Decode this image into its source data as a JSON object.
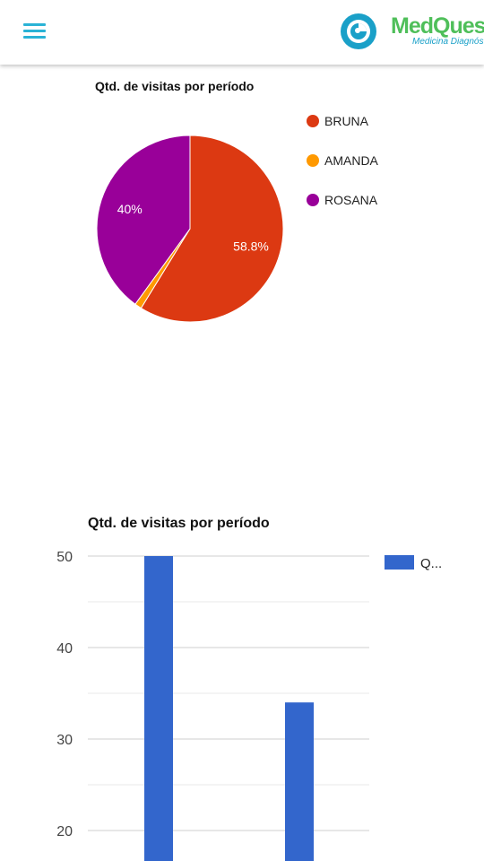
{
  "header": {
    "menu_icon": "hamburger-menu-icon",
    "logo_name": "MedQuest",
    "logo_tagline": "Medicina Diagnóstica",
    "colors": {
      "menu": "#2ab3d6",
      "logo_green": "#4fbf5a",
      "logo_blue": "#1aa0c8"
    }
  },
  "chart_data": [
    {
      "type": "pie",
      "title": "Qtd. de visitas por período",
      "slices": [
        {
          "label": "BRUNA",
          "percent": 58.8,
          "color": "#dc3912",
          "data_label": "58.8%"
        },
        {
          "label": "AMANDA",
          "percent": 1.2,
          "color": "#ff9900",
          "data_label": ""
        },
        {
          "label": "ROSANA",
          "percent": 40.0,
          "color": "#990099",
          "data_label": "40%"
        }
      ],
      "legend_position": "right"
    },
    {
      "type": "bar",
      "title": "Qtd. de visitas por período",
      "categories": [
        "",
        ""
      ],
      "series": [
        {
          "name": "Q...",
          "values": [
            50,
            34
          ],
          "color": "#3366cc"
        }
      ],
      "y_ticks": [
        20,
        30,
        40,
        50
      ],
      "ylim": [
        16,
        50
      ],
      "grid": true,
      "legend_position": "top-right"
    }
  ]
}
